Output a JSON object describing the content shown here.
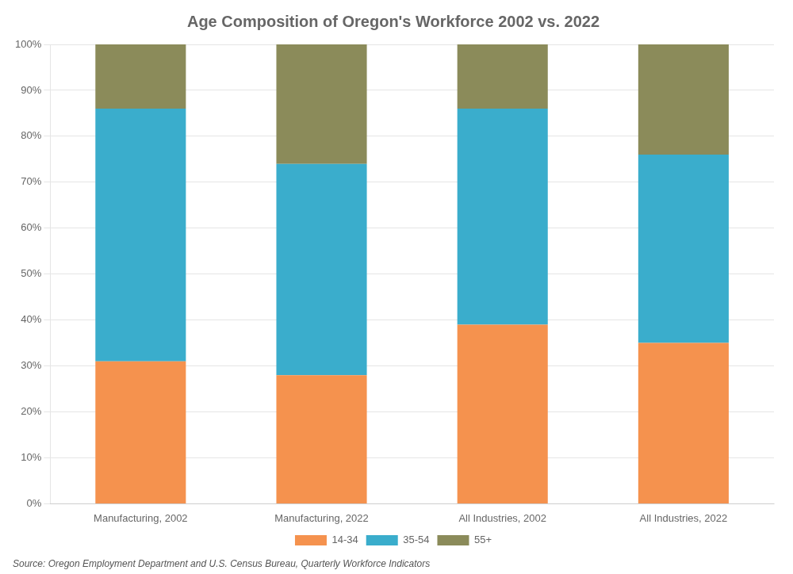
{
  "chart_data": {
    "type": "bar",
    "stacked": true,
    "title": "Age Composition of Oregon's Workforce 2002 vs. 2022",
    "categories": [
      "Manufacturing, 2002",
      "Manufacturing, 2022",
      "All Industries, 2002",
      "All Industries, 2022"
    ],
    "series": [
      {
        "name": "14-34",
        "color": "#F5924E",
        "values": [
          31,
          28,
          39,
          35
        ]
      },
      {
        "name": "35-54",
        "color": "#3AADCC",
        "values": [
          55,
          46,
          47,
          41
        ]
      },
      {
        "name": "55+",
        "color": "#8B8B5A",
        "values": [
          14,
          26,
          14,
          24
        ]
      }
    ],
    "ylim": [
      0,
      100
    ],
    "yticks": [
      {
        "value": 0,
        "label": "0%"
      },
      {
        "value": 10,
        "label": "10%"
      },
      {
        "value": 20,
        "label": "20%"
      },
      {
        "value": 30,
        "label": "30%"
      },
      {
        "value": 40,
        "label": "40%"
      },
      {
        "value": 50,
        "label": "50%"
      },
      {
        "value": 60,
        "label": "60%"
      },
      {
        "value": 70,
        "label": "70%"
      },
      {
        "value": 80,
        "label": "80%"
      },
      {
        "value": 90,
        "label": "90%"
      },
      {
        "value": 100,
        "label": "100%"
      }
    ],
    "grid": true,
    "legend": "bottom",
    "annotations": [
      "Source: Oregon Employment Department and U.S. Census Bureau, Quarterly Workforce Indicators"
    ]
  }
}
